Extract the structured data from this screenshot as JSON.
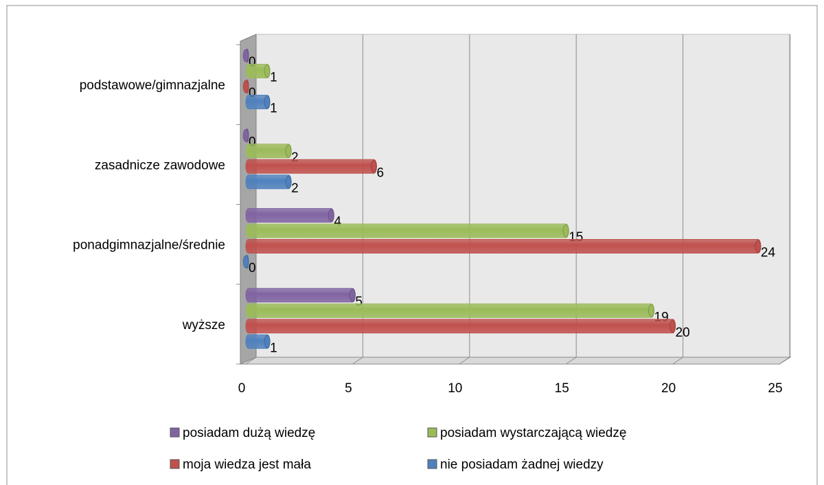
{
  "chart_data": {
    "type": "bar",
    "orientation": "horizontal",
    "categories": [
      "wyższe",
      "ponadgimnazjalne/średnie",
      "zasadnicze zawodowe",
      "podstawowe/gimnazjalne"
    ],
    "series": [
      {
        "name": "posiadam dużą wiedzę",
        "color": "#8064a2",
        "values": [
          5,
          4,
          0,
          0
        ]
      },
      {
        "name": "posiadam wystarczającą wiedzę",
        "color": "#9bbb59",
        "values": [
          19,
          15,
          2,
          1
        ]
      },
      {
        "name": "moja wiedza jest mała",
        "color": "#c0504d",
        "values": [
          20,
          24,
          6,
          0
        ]
      },
      {
        "name": "nie posiadam żadnej wiedzy",
        "color": "#4f81bd",
        "values": [
          1,
          0,
          2,
          1
        ]
      }
    ],
    "xlim": [
      0,
      25
    ],
    "xticks": [
      0,
      5,
      10,
      15,
      20,
      25
    ],
    "grid": true,
    "legend": "bottom"
  }
}
